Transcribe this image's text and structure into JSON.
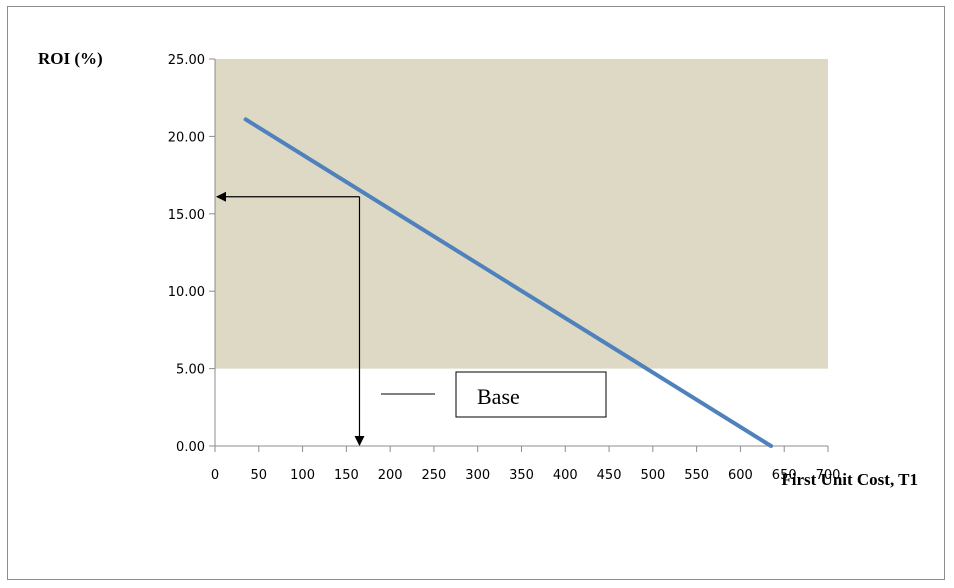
{
  "chart_data": {
    "type": "line",
    "title": "",
    "xlabel": "First Unit Cost, T1",
    "ylabel": "ROI (%)",
    "xlim": [
      0,
      700
    ],
    "ylim": [
      0,
      25
    ],
    "xticks": [
      0,
      50,
      100,
      150,
      200,
      250,
      300,
      350,
      400,
      450,
      500,
      550,
      600,
      650,
      700
    ],
    "yticks": [
      "0.00",
      "5.00",
      "10.00",
      "15.00",
      "20.00",
      "25.00"
    ],
    "grid": false,
    "shaded_region": {
      "y_from": 5,
      "y_to": 25,
      "color": "#ddd9c4"
    },
    "series": [
      {
        "name": "Base",
        "color": "#4f81bd",
        "x": [
          35,
          635
        ],
        "y": [
          21.1,
          0
        ]
      }
    ],
    "annotation": {
      "x": 165,
      "y": 16.1,
      "description": "arrows from base point to axes"
    },
    "legend": {
      "position": "center-bottom",
      "label": "Base"
    }
  }
}
